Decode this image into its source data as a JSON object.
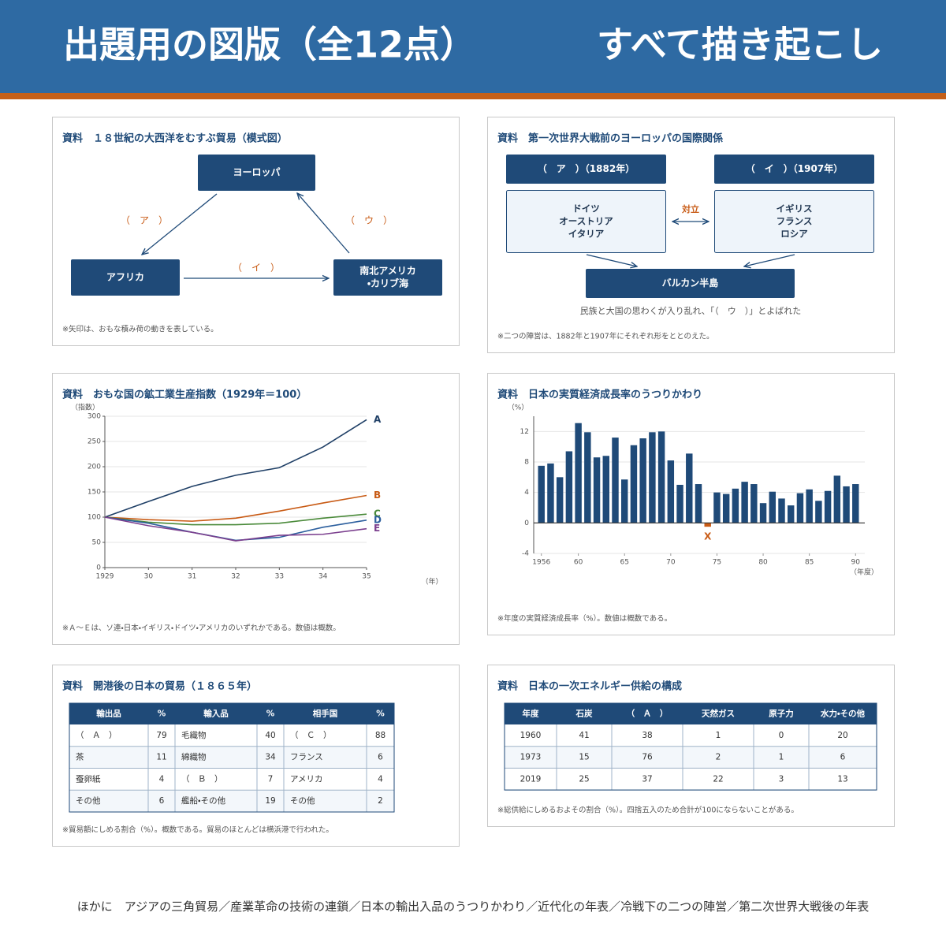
{
  "header": {
    "title": "出題用の図版（全12点）",
    "subtitle": "すべて描き起こし"
  },
  "trade_diagram": {
    "title": "資料　１８世紀の大西洋をむすぶ貿易（模式図）",
    "nodes": [
      {
        "label": [
          "ヨーロッパ"
        ]
      },
      {
        "label": [
          "アフリカ"
        ]
      },
      {
        "label": [
          "南北アメリカ",
          "・カリブ海"
        ]
      }
    ],
    "arrows": [
      "（　ア　）",
      "（　イ　）",
      "（　ウ　）"
    ],
    "note": "※矢印は、おもな積み荷の動きを表している。"
  },
  "alliance_diagram": {
    "title": "資料　第一次世界大戦前のヨーロッパの国際関係",
    "groups": [
      {
        "name": "（　ア　）（1882年）",
        "members": [
          "ドイツ",
          "オーストリア",
          "イタリア"
        ]
      },
      {
        "name": "（　イ　）（1907年）",
        "members": [
          "イギリス",
          "フランス",
          "ロシア"
        ]
      }
    ],
    "relation": "対立",
    "target": "バルカン半島",
    "caption": "民族と大国の思わくが入り乱れ、「（　ウ　）」とよばれた",
    "note": "※二つの陣営は、1882年と1907年にそれぞれ形をととのえた。"
  },
  "chart_data": [
    {
      "type": "line",
      "title": "資料　おもな国の鉱工業生産指数（1929年＝100）",
      "y_label": "（指数）",
      "x_label": "（年）",
      "x": [
        1929,
        1930,
        1931,
        1932,
        1933,
        1934,
        1935
      ],
      "xlim": [
        1929,
        1935
      ],
      "xticks": [
        1929,
        {
          "value": 1930,
          "label": "30"
        },
        {
          "value": 1931,
          "label": "31"
        },
        {
          "value": 1932,
          "label": "32"
        },
        {
          "value": 1933,
          "label": "33"
        },
        {
          "value": 1934,
          "label": "34"
        },
        {
          "value": 1935,
          "label": "35"
        }
      ],
      "ylim": [
        0,
        300
      ],
      "yticks": [
        0,
        50,
        100,
        150,
        200,
        250,
        300
      ],
      "grid": true,
      "series": [
        {
          "name": "A",
          "color": "#1f3f66",
          "values": [
            100,
            131,
            161,
            183,
            198,
            239,
            293
          ]
        },
        {
          "name": "B",
          "color": "#c85a14",
          "values": [
            100,
            95,
            92,
            98,
            112,
            128,
            143
          ]
        },
        {
          "name": "C",
          "color": "#4a8a3a",
          "values": [
            100,
            90,
            85,
            85,
            88,
            98,
            106
          ]
        },
        {
          "name": "D",
          "color": "#2c5f9e",
          "values": [
            100,
            88,
            70,
            54,
            60,
            80,
            94
          ]
        },
        {
          "name": "E",
          "color": "#7b3f8e",
          "values": [
            100,
            83,
            70,
            53,
            64,
            66,
            77
          ]
        }
      ],
      "note": "※Ａ～Ｅは、ソ連・日本・イギリス・ドイツ・アメリカのいずれかである。数値は概数。"
    },
    {
      "type": "bar",
      "title": "資料　日本の実質経済成長率のうつりかわり",
      "y_label": "（%）",
      "x_label": "（年度）",
      "x": [
        1956,
        1957,
        1958,
        1959,
        1960,
        1961,
        1962,
        1963,
        1964,
        1965,
        1966,
        1967,
        1968,
        1969,
        1970,
        1971,
        1972,
        1973,
        1974,
        1975,
        1976,
        1977,
        1978,
        1979,
        1980,
        1981,
        1982,
        1983,
        1984,
        1985,
        1986,
        1987,
        1988,
        1989,
        1990
      ],
      "values": [
        7.5,
        7.8,
        6.0,
        9.4,
        13.1,
        11.9,
        8.6,
        8.8,
        11.2,
        5.7,
        10.2,
        11.1,
        11.9,
        12.0,
        8.2,
        5.0,
        9.1,
        5.1,
        -0.5,
        4.0,
        3.8,
        4.5,
        5.4,
        5.1,
        2.6,
        4.1,
        3.2,
        2.3,
        3.9,
        4.4,
        2.9,
        4.2,
        6.2,
        4.8,
        5.1
      ],
      "color": "#1f4a78",
      "xlim": [
        1955,
        1991
      ],
      "xticks": [
        1956,
        {
          "value": 1960,
          "label": "60"
        },
        {
          "value": 1965,
          "label": "65"
        },
        {
          "value": 1970,
          "label": "70"
        },
        {
          "value": 1975,
          "label": "75"
        },
        {
          "value": 1980,
          "label": "80"
        },
        {
          "value": 1985,
          "label": "85"
        },
        {
          "value": 1990,
          "label": "90"
        }
      ],
      "ylim": [
        -4,
        14
      ],
      "yticks": [
        -4,
        0,
        4,
        8,
        12
      ],
      "grid": true,
      "annotations": [
        {
          "x": 1974,
          "text": "X",
          "color": "#c85a14"
        }
      ],
      "note": "※年度の実質経済成長率（%）。数値は概数である。"
    }
  ],
  "trade_table": {
    "title": "資料　開港後の日本の貿易（１８６５年）",
    "header": [
      "輸出品",
      "%",
      "輸入品",
      "%",
      "相手国",
      "%"
    ],
    "rows": [
      [
        "（　Ａ　）",
        79,
        "毛織物",
        40,
        "（　Ｃ　）",
        88
      ],
      [
        "茶",
        11,
        "綿織物",
        34,
        "フランス",
        6
      ],
      [
        "蚕卵紙",
        4,
        "（　Ｂ　）",
        7,
        "アメリカ",
        4
      ],
      [
        "その他",
        6,
        "艦船・その他",
        19,
        "その他",
        2
      ]
    ],
    "note": "※貿易額にしめる割合（%）。概数である。貿易のほとんどは横浜港で行われた。"
  },
  "energy_table": {
    "title": "資料　日本の一次エネルギー供給の構成",
    "header": [
      "年度",
      "石炭",
      "（　Ａ　）",
      "天然ガス",
      "原子力",
      "水力・その他"
    ],
    "rows": [
      [
        1960,
        41,
        38,
        1,
        0,
        20
      ],
      [
        1973,
        15,
        76,
        2,
        1,
        6
      ],
      [
        2019,
        25,
        37,
        22,
        3,
        13
      ]
    ],
    "note": "※総供給にしめるおよその割合（%）。四捨五入のため合計が100にならないことがある。"
  },
  "footer": "ほかに　アジアの三角貿易／産業革命の技術の連鎖／日本の輸出入品のうつりかわり／近代化の年表／冷戦下の二つの陣営／第二次世界大戦後の年表"
}
